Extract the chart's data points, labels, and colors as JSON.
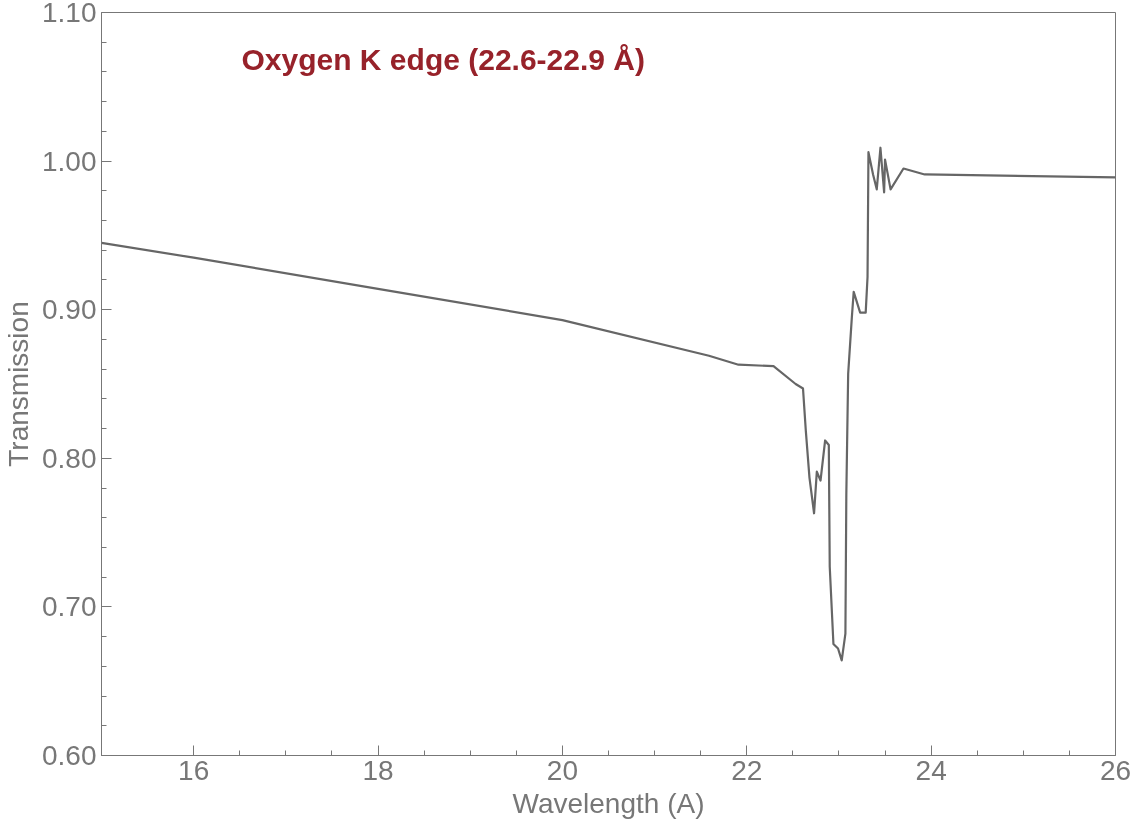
{
  "chart_data": {
    "type": "line",
    "xlabel": "Wavelength (A)",
    "ylabel": "Transmission",
    "annotations": [
      "Oxygen K edge (22.6-22.9 Å)"
    ],
    "xlim": [
      15,
      26
    ],
    "xticks": [
      16,
      18,
      20,
      22,
      24,
      26
    ],
    "ylim": [
      0.6,
      1.1
    ],
    "yticks": [
      {
        "value": 0.6,
        "label": "0.60"
      },
      {
        "value": 0.7,
        "label": "0.70"
      },
      {
        "value": 0.8,
        "label": "0.80"
      },
      {
        "value": 0.9,
        "label": "0.90"
      },
      {
        "value": 1.0,
        "label": "1.00"
      },
      {
        "value": 1.1,
        "label": "1.10"
      }
    ],
    "grid": false,
    "marker": "none",
    "line_style": "solid",
    "series": [
      {
        "color": "#666666",
        "x": [
          15,
          16,
          18,
          20,
          21.59,
          21.91,
          22.29,
          22.53,
          22.61,
          22.64,
          22.68,
          22.73,
          22.76,
          22.8,
          22.85,
          22.89,
          22.9,
          22.94,
          22.99,
          23.03,
          23.07,
          23.08,
          23.1,
          23.14,
          23.16,
          23.23,
          23.29,
          23.31,
          23.32,
          23.37,
          23.41,
          23.45,
          23.49,
          23.5,
          23.56,
          23.7,
          23.93,
          26
        ],
        "values": [
          0.945,
          0.935,
          0.914,
          0.893,
          0.869,
          0.863,
          0.862,
          0.85,
          0.847,
          0.819,
          0.787,
          0.763,
          0.791,
          0.785,
          0.812,
          0.809,
          0.727,
          0.675,
          0.672,
          0.664,
          0.682,
          0.776,
          0.857,
          0.895,
          0.912,
          0.898,
          0.898,
          0.922,
          1.006,
          0.991,
          0.981,
          1.009,
          0.979,
          1.001,
          0.981,
          0.995,
          0.991,
          0.989
        ]
      }
    ]
  }
}
